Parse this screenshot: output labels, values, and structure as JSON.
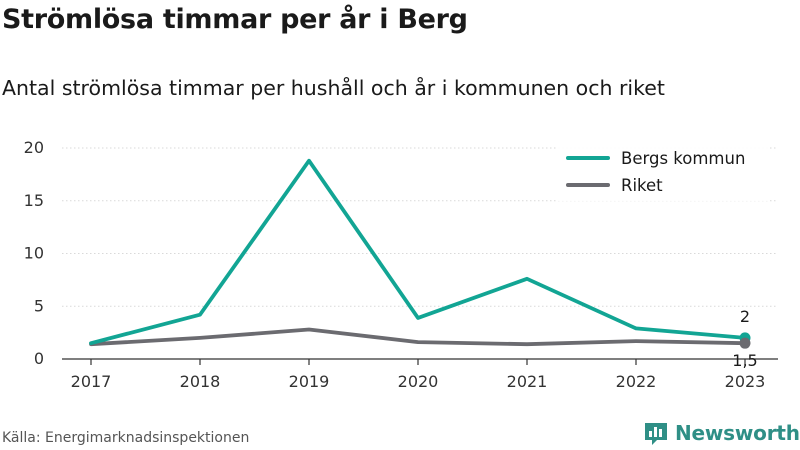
{
  "header": {
    "title": "Strömlösa timmar per år i Berg",
    "subtitle": "Antal strömlösa timmar per hushåll och år i kommunen och riket"
  },
  "footer": {
    "source": "Källa: Energimarknadsinspektionen",
    "brand": "Newsworthy"
  },
  "colors": {
    "kommun": "#12a594",
    "riket": "#6b6b70",
    "grid": "#d9d9d9",
    "brand": "#2f8f86"
  },
  "chart_data": {
    "type": "line",
    "x": [
      "2017",
      "2018",
      "2019",
      "2020",
      "2021",
      "2022",
      "2023"
    ],
    "ylim": [
      0,
      20
    ],
    "yticks": [
      "0",
      "5",
      "10",
      "15",
      "20"
    ],
    "grid": "horizontal",
    "legend_position": "top-right",
    "series": [
      {
        "name": "Bergs kommun",
        "values": [
          1.5,
          4.2,
          18.8,
          3.9,
          7.6,
          2.9,
          2.0
        ],
        "end_label": "2"
      },
      {
        "name": "Riket",
        "values": [
          1.4,
          2.0,
          2.8,
          1.6,
          1.4,
          1.7,
          1.5
        ],
        "end_label": "1,5"
      }
    ]
  }
}
